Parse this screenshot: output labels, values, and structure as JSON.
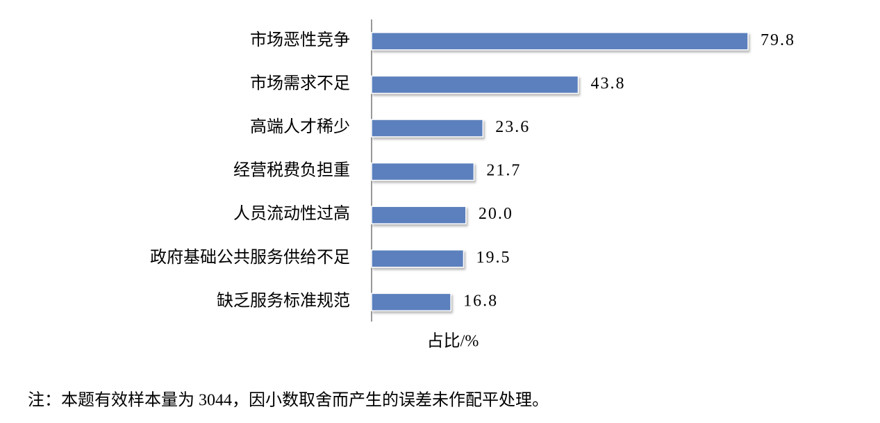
{
  "chart_data": {
    "type": "bar",
    "orientation": "horizontal",
    "categories": [
      "市场恶性竞争",
      "市场需求不足",
      "高端人才稀少",
      "经营税费负担重",
      "人员流动性过高",
      "政府基础公共服务供给不足",
      "缺乏服务标准规范"
    ],
    "values": [
      79.8,
      43.8,
      23.6,
      21.7,
      20.0,
      19.5,
      16.8
    ],
    "value_labels": [
      "79.8",
      "43.8",
      "23.6",
      "21.7",
      "20.0",
      "19.5",
      "16.8"
    ],
    "color": "#5b80bd",
    "xlabel": "占比/%",
    "note": "注：本题有效样本量为 3044，因小数取舍而产生的误差未作配平处理。"
  }
}
